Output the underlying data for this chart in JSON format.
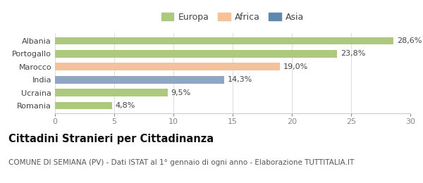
{
  "categories": [
    "Albania",
    "Portogallo",
    "Marocco",
    "India",
    "Ucraina",
    "Romania"
  ],
  "values": [
    28.6,
    23.8,
    19.0,
    14.3,
    9.5,
    4.8
  ],
  "labels": [
    "28,6%",
    "23,8%",
    "19,0%",
    "14,3%",
    "9,5%",
    "4,8%"
  ],
  "bar_colors": [
    "#adc97e",
    "#adc97e",
    "#f5c199",
    "#8ea8c3",
    "#adc97e",
    "#adc97e"
  ],
  "legend_items": [
    {
      "label": "Europa",
      "color": "#adc97e"
    },
    {
      "label": "Africa",
      "color": "#f5c199"
    },
    {
      "label": "Asia",
      "color": "#5f88b0"
    }
  ],
  "xlim": [
    0,
    30
  ],
  "xticks": [
    0,
    5,
    10,
    15,
    20,
    25,
    30
  ],
  "title": "Cittadini Stranieri per Cittadinanza",
  "subtitle": "COMUNE DI SEMIANA (PV) - Dati ISTAT al 1° gennaio di ogni anno - Elaborazione TUTTITALIA.IT",
  "background_color": "#ffffff",
  "bar_height": 0.58,
  "title_fontsize": 10.5,
  "subtitle_fontsize": 7.5,
  "label_fontsize": 8,
  "tick_fontsize": 8,
  "legend_fontsize": 9
}
